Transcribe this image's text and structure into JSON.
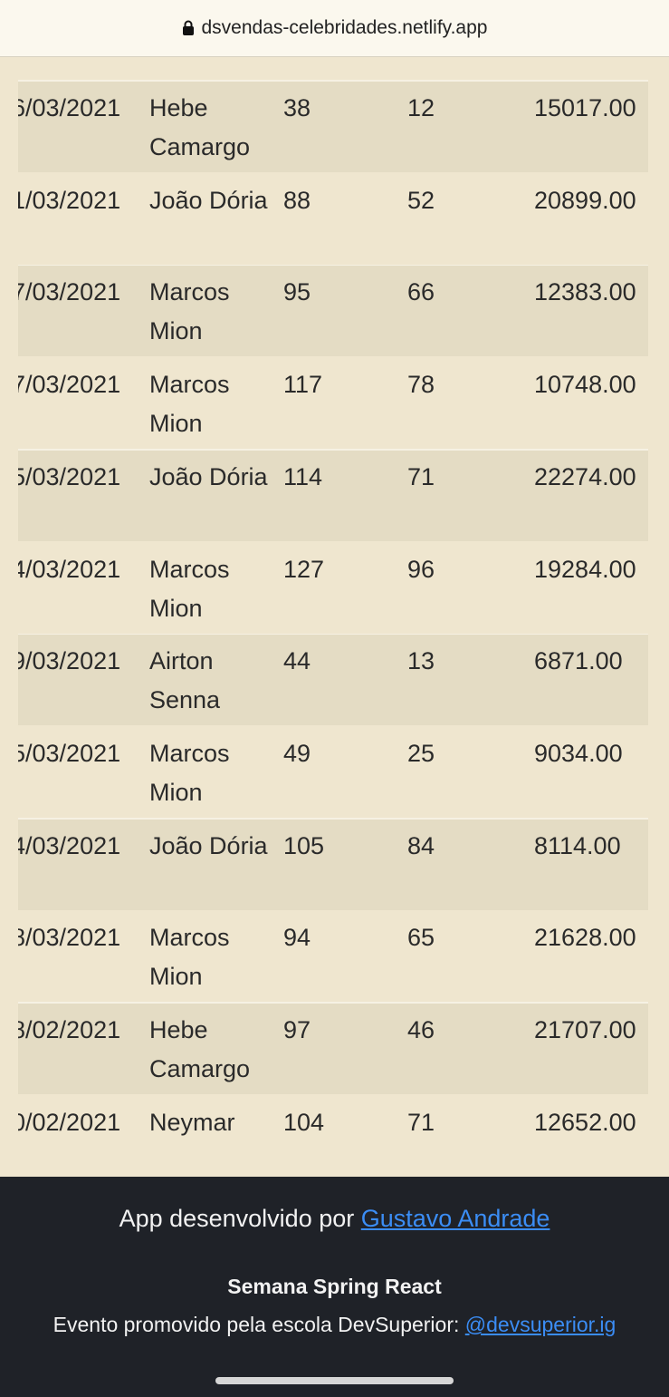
{
  "url_bar": {
    "url": "dsvendas-celebridades.netlify.app"
  },
  "table": {
    "partial_row": "Senna",
    "rows": [
      [
        "6/03/2021",
        "Hebe Camargo",
        "38",
        "12",
        "15017.00"
      ],
      [
        "1/03/2021",
        "João Dória",
        "88",
        "52",
        "20899.00"
      ],
      [
        "7/03/2021",
        "Marcos Mion",
        "95",
        "66",
        "12383.00"
      ],
      [
        "7/03/2021",
        "Marcos Mion",
        "117",
        "78",
        "10748.00"
      ],
      [
        "5/03/2021",
        "João Dória",
        "114",
        "71",
        "22274.00"
      ],
      [
        "4/03/2021",
        "Marcos Mion",
        "127",
        "96",
        "19284.00"
      ],
      [
        "9/03/2021",
        "Airton Senna",
        "44",
        "13",
        "6871.00"
      ],
      [
        "5/03/2021",
        "Marcos Mion",
        "49",
        "25",
        "9034.00"
      ],
      [
        "4/03/2021",
        "João Dória",
        "105",
        "84",
        "8114.00"
      ],
      [
        "8/03/2021",
        "Marcos Mion",
        "94",
        "65",
        "21628.00"
      ],
      [
        "8/02/2021",
        "Hebe Camargo",
        "97",
        "46",
        "21707.00"
      ],
      [
        "0/02/2021",
        "Neymar",
        "104",
        "71",
        "12652.00"
      ]
    ]
  },
  "footer": {
    "credit_text": "App desenvolvido por",
    "credit_link": "Gustavo Andrade",
    "event_title": "Semana Spring React",
    "event_text": "Evento promovido pela escola DevSuperior:",
    "event_link": "@devsuperior.ig"
  }
}
